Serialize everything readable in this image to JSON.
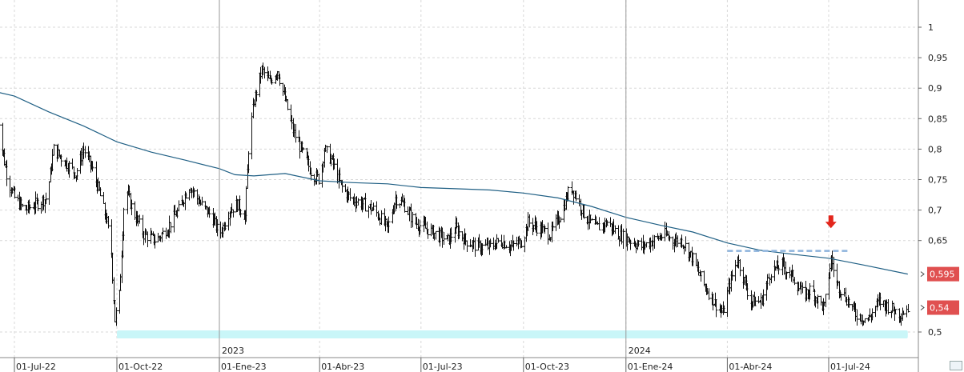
{
  "chart_data": {
    "type": "candlestick",
    "ylim": [
      0.475,
      1.075
    ],
    "y_ticks": [
      {
        "value": 1.0,
        "label": "1"
      },
      {
        "value": 0.95,
        "label": "0,95"
      },
      {
        "value": 0.9,
        "label": "0,9"
      },
      {
        "value": 0.85,
        "label": "0,85"
      },
      {
        "value": 0.8,
        "label": "0,8"
      },
      {
        "value": 0.75,
        "label": "0,75"
      },
      {
        "value": 0.7,
        "label": "0,7"
      },
      {
        "value": 0.65,
        "label": "0,65"
      },
      {
        "value": 0.5,
        "label": "0,5"
      }
    ],
    "x_ticks": [
      {
        "date": "2022-07-01",
        "label": "01-Jul-22"
      },
      {
        "date": "2022-10-01",
        "label": "01-Oct-22"
      },
      {
        "date": "2023-01-01",
        "label": "01-Ene-23"
      },
      {
        "date": "2023-04-01",
        "label": "01-Abr-23"
      },
      {
        "date": "2023-07-01",
        "label": "01-Jul-23"
      },
      {
        "date": "2023-10-01",
        "label": "01-Oct-23"
      },
      {
        "date": "2024-01-01",
        "label": "01-Ene-24"
      },
      {
        "date": "2024-04-01",
        "label": "01-Abr-24"
      },
      {
        "date": "2024-07-01",
        "label": "01-Jul-24"
      }
    ],
    "year_marks": [
      {
        "date": "2023-01-01",
        "label": "2023"
      },
      {
        "date": "2024-01-01",
        "label": "2024"
      }
    ],
    "price_path": [
      [
        "2022-06-15",
        0.88
      ],
      [
        "2022-06-20",
        0.8
      ],
      [
        "2022-06-25",
        0.75
      ],
      [
        "2022-07-01",
        0.72
      ],
      [
        "2022-07-10",
        0.7
      ],
      [
        "2022-07-20",
        0.71
      ],
      [
        "2022-07-30",
        0.72
      ],
      [
        "2022-08-05",
        0.8
      ],
      [
        "2022-08-15",
        0.78
      ],
      [
        "2022-08-25",
        0.76
      ],
      [
        "2022-09-01",
        0.8
      ],
      [
        "2022-09-08",
        0.77
      ],
      [
        "2022-09-15",
        0.73
      ],
      [
        "2022-09-22",
        0.68
      ],
      [
        "2022-09-26",
        0.63
      ],
      [
        "2022-09-29",
        0.52
      ],
      [
        "2022-10-03",
        0.56
      ],
      [
        "2022-10-08",
        0.74
      ],
      [
        "2022-10-15",
        0.7
      ],
      [
        "2022-10-25",
        0.66
      ],
      [
        "2022-11-05",
        0.65
      ],
      [
        "2022-11-15",
        0.67
      ],
      [
        "2022-11-25",
        0.7
      ],
      [
        "2022-12-05",
        0.74
      ],
      [
        "2022-12-15",
        0.71
      ],
      [
        "2022-12-25",
        0.69
      ],
      [
        "2023-01-01",
        0.66
      ],
      [
        "2023-01-10",
        0.7
      ],
      [
        "2023-01-17",
        0.71
      ],
      [
        "2023-01-24",
        0.69
      ],
      [
        "2023-01-27",
        0.8
      ],
      [
        "2023-02-01",
        0.88
      ],
      [
        "2023-02-08",
        0.93
      ],
      [
        "2023-02-15",
        0.91
      ],
      [
        "2023-02-22",
        0.93
      ],
      [
        "2023-03-01",
        0.88
      ],
      [
        "2023-03-08",
        0.83
      ],
      [
        "2023-03-15",
        0.8
      ],
      [
        "2023-03-25",
        0.76
      ],
      [
        "2023-04-01",
        0.75
      ],
      [
        "2023-04-05",
        0.8
      ],
      [
        "2023-04-12",
        0.78
      ],
      [
        "2023-04-20",
        0.74
      ],
      [
        "2023-04-28",
        0.72
      ],
      [
        "2023-05-10",
        0.71
      ],
      [
        "2023-05-20",
        0.7
      ],
      [
        "2023-06-01",
        0.67
      ],
      [
        "2023-06-08",
        0.72
      ],
      [
        "2023-06-15",
        0.71
      ],
      [
        "2023-06-25",
        0.68
      ],
      [
        "2023-07-05",
        0.67
      ],
      [
        "2023-07-15",
        0.66
      ],
      [
        "2023-07-25",
        0.65
      ],
      [
        "2023-08-01",
        0.67
      ],
      [
        "2023-08-10",
        0.65
      ],
      [
        "2023-08-20",
        0.64
      ],
      [
        "2023-09-01",
        0.64
      ],
      [
        "2023-09-10",
        0.65
      ],
      [
        "2023-09-20",
        0.64
      ],
      [
        "2023-09-30",
        0.65
      ],
      [
        "2023-10-05",
        0.68
      ],
      [
        "2023-10-15",
        0.67
      ],
      [
        "2023-10-25",
        0.66
      ],
      [
        "2023-11-05",
        0.7
      ],
      [
        "2023-11-12",
        0.74
      ],
      [
        "2023-11-18",
        0.72
      ],
      [
        "2023-11-25",
        0.69
      ],
      [
        "2023-12-05",
        0.67
      ],
      [
        "2023-12-15",
        0.68
      ],
      [
        "2023-12-25",
        0.66
      ],
      [
        "2024-01-05",
        0.65
      ],
      [
        "2024-01-15",
        0.64
      ],
      [
        "2024-01-25",
        0.65
      ],
      [
        "2024-02-05",
        0.66
      ],
      [
        "2024-02-12",
        0.65
      ],
      [
        "2024-02-20",
        0.65
      ],
      [
        "2024-03-01",
        0.62
      ],
      [
        "2024-03-10",
        0.58
      ],
      [
        "2024-03-20",
        0.55
      ],
      [
        "2024-03-28",
        0.53
      ],
      [
        "2024-04-03",
        0.58
      ],
      [
        "2024-04-10",
        0.62
      ],
      [
        "2024-04-15",
        0.59
      ],
      [
        "2024-04-22",
        0.55
      ],
      [
        "2024-05-01",
        0.55
      ],
      [
        "2024-05-10",
        0.6
      ],
      [
        "2024-05-20",
        0.61
      ],
      [
        "2024-05-30",
        0.59
      ],
      [
        "2024-06-08",
        0.56
      ],
      [
        "2024-06-15",
        0.57
      ],
      [
        "2024-06-22",
        0.55
      ],
      [
        "2024-06-27",
        0.54
      ],
      [
        "2024-07-03",
        0.62
      ],
      [
        "2024-07-08",
        0.58
      ],
      [
        "2024-07-15",
        0.56
      ],
      [
        "2024-07-25",
        0.53
      ],
      [
        "2024-08-05",
        0.52
      ],
      [
        "2024-08-15",
        0.55
      ],
      [
        "2024-08-25",
        0.54
      ],
      [
        "2024-09-03",
        0.53
      ],
      [
        "2024-09-10",
        0.54
      ]
    ],
    "moving_average": [
      [
        "2022-06-15",
        0.894
      ],
      [
        "2022-07-01",
        0.887
      ],
      [
        "2022-08-01",
        0.861
      ],
      [
        "2022-09-01",
        0.838
      ],
      [
        "2022-10-01",
        0.812
      ],
      [
        "2022-11-01",
        0.795
      ],
      [
        "2022-12-01",
        0.782
      ],
      [
        "2023-01-01",
        0.768
      ],
      [
        "2023-01-15",
        0.758
      ],
      [
        "2023-02-01",
        0.756
      ],
      [
        "2023-03-01",
        0.76
      ],
      [
        "2023-04-01",
        0.748
      ],
      [
        "2023-05-01",
        0.745
      ],
      [
        "2023-06-01",
        0.743
      ],
      [
        "2023-07-01",
        0.737
      ],
      [
        "2023-08-01",
        0.735
      ],
      [
        "2023-09-01",
        0.733
      ],
      [
        "2023-10-01",
        0.728
      ],
      [
        "2023-11-01",
        0.72
      ],
      [
        "2023-12-01",
        0.706
      ],
      [
        "2024-01-01",
        0.688
      ],
      [
        "2024-02-01",
        0.675
      ],
      [
        "2024-03-01",
        0.664
      ],
      [
        "2024-04-01",
        0.646
      ],
      [
        "2024-05-01",
        0.634
      ],
      [
        "2024-06-01",
        0.627
      ],
      [
        "2024-07-01",
        0.621
      ],
      [
        "2024-08-01",
        0.61
      ],
      [
        "2024-09-10",
        0.595
      ]
    ],
    "resistance_line": {
      "from": "2024-04-01",
      "to": "2024-07-20",
      "value": 0.633
    },
    "support_band": {
      "from": "2022-10-01",
      "to": "2024-09-10",
      "value": 0.496
    },
    "signal_arrow": {
      "date": "2024-07-03",
      "value": 0.665
    },
    "last_values": [
      {
        "label": "0,595",
        "value": 0.595,
        "series": "moving_average"
      },
      {
        "label": "0,54",
        "value": 0.54,
        "series": "price"
      }
    ],
    "grid": true,
    "colors": {
      "price": "#111111",
      "moving_average": "#1f5f84",
      "support_band": "#c9f6f8",
      "resistance_line": "#8db3dc",
      "arrow": "#e3261c",
      "badge": "#e05050",
      "grid": "#d8d8d8"
    }
  }
}
